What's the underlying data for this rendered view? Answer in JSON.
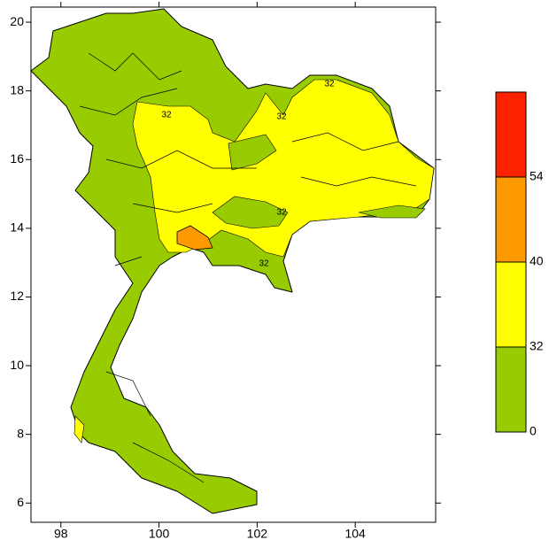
{
  "chart_data": {
    "type": "contour-map",
    "xlim": [
      97.39,
      105.64
    ],
    "xticks": [
      98,
      100,
      102,
      104
    ],
    "ylim": [
      5.44,
      20.44
    ],
    "yticks": [
      6,
      8,
      10,
      12,
      14,
      16,
      18,
      20
    ],
    "colorbar": {
      "levels": [
        0,
        32,
        40,
        54
      ],
      "colors": [
        "#99cc00",
        "#ffff00",
        "#ff9900",
        "#ff2200"
      ]
    },
    "contour_labels": [
      "32",
      "32",
      "32",
      "32",
      "32"
    ]
  }
}
